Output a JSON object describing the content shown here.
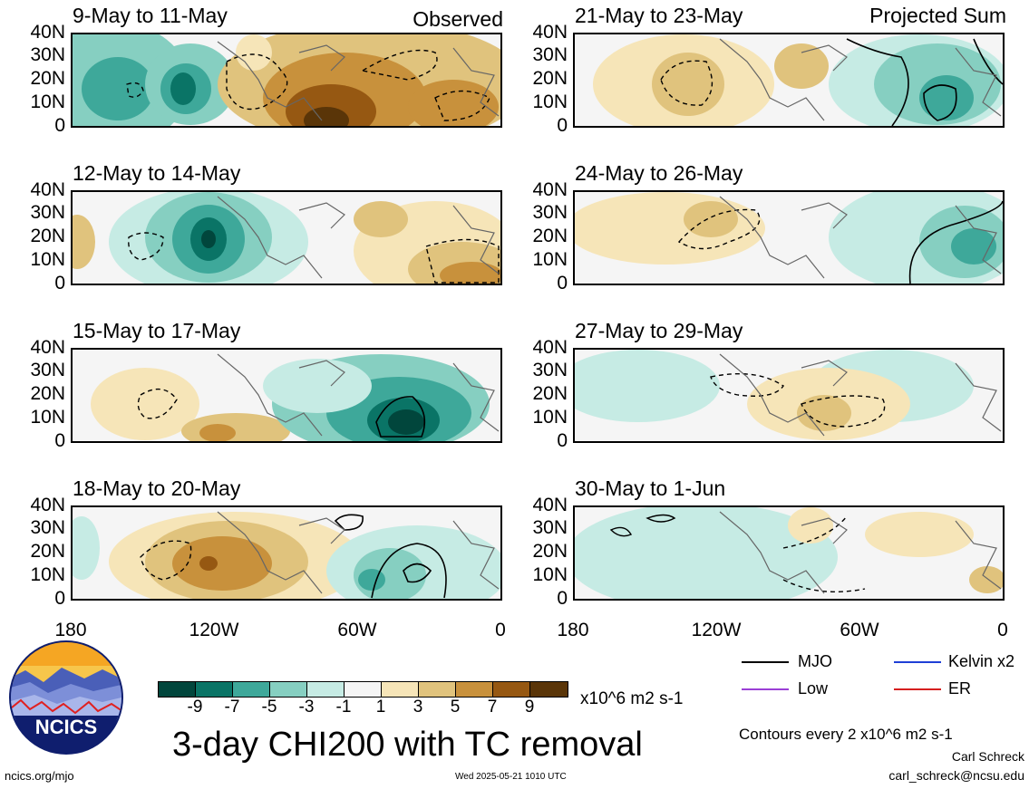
{
  "panels_left": [
    {
      "title": "9-May to 11-May",
      "corner": "Observed"
    },
    {
      "title": "12-May to 14-May",
      "corner": ""
    },
    {
      "title": "15-May to 17-May",
      "corner": ""
    },
    {
      "title": "18-May to 20-May",
      "corner": ""
    }
  ],
  "panels_right": [
    {
      "title": "21-May to 23-May",
      "corner": "Projected Sum"
    },
    {
      "title": "24-May to 26-May",
      "corner": ""
    },
    {
      "title": "27-May to 29-May",
      "corner": ""
    },
    {
      "title": "30-May to 1-Jun",
      "corner": ""
    }
  ],
  "y_ticks": [
    "40N",
    "30N",
    "20N",
    "10N",
    "0"
  ],
  "x_ticks_left": [
    "180",
    "120W",
    "60W",
    "0"
  ],
  "x_ticks_right": [
    "180",
    "120W",
    "60W",
    "0"
  ],
  "colorbar": {
    "colors": [
      "#01463c",
      "#0a7466",
      "#3ea89a",
      "#86cfc1",
      "#c6ebe4",
      "#f5f5f5",
      "#f6e5b8",
      "#e0c37d",
      "#c8913c",
      "#965812",
      "#5a3508"
    ],
    "labels": [
      "-9",
      "-7",
      "-5",
      "-3",
      "-1",
      "1",
      "3",
      "5",
      "7",
      "9"
    ],
    "units": "x10^6 m2 s-1"
  },
  "main_title": "3-day CHI200 with TC removal",
  "legend": [
    {
      "label": "MJO",
      "color": "#000000"
    },
    {
      "label": "Kelvin x2",
      "color": "#1f3fd6"
    },
    {
      "label": "Low",
      "color": "#9b3fd6"
    },
    {
      "label": "ER",
      "color": "#d61f1f"
    }
  ],
  "contours_note": "Contours every 2 x10^6 m2 s-1",
  "author": "Carl Schreck",
  "email": "carl_schreck@ncsu.edu",
  "site": "ncics.org/mjo",
  "timestamp": "Wed 2025-05-21 1010 UTC",
  "logo": {
    "text": "NCICS"
  }
}
